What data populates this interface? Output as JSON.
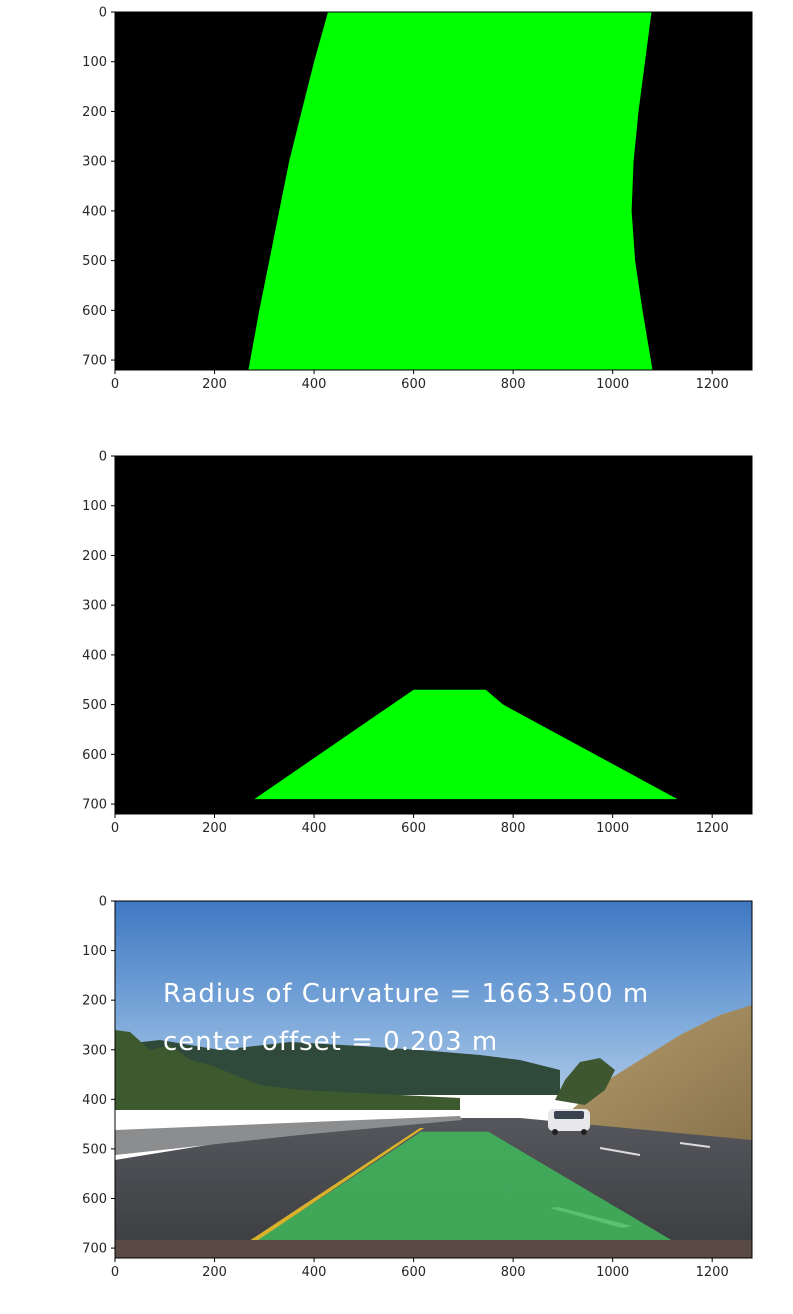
{
  "chart_data": [
    {
      "type": "image",
      "xlim": [
        0,
        1280
      ],
      "ylim": [
        720,
        0
      ],
      "xticks": [
        0,
        200,
        400,
        600,
        800,
        1000,
        1200
      ],
      "yticks": [
        0,
        100,
        200,
        300,
        400,
        500,
        600,
        700
      ],
      "background": "#000000",
      "fill_color": "#00ff00",
      "lane_polygon": {
        "left_edge": [
          [
            428,
            0
          ],
          [
            400,
            100
          ],
          [
            375,
            200
          ],
          [
            350,
            300
          ],
          [
            330,
            400
          ],
          [
            310,
            500
          ],
          [
            290,
            600
          ],
          [
            268,
            720
          ]
        ],
        "right_edge": [
          [
            1080,
            720
          ],
          [
            1060,
            600
          ],
          [
            1045,
            500
          ],
          [
            1038,
            400
          ],
          [
            1042,
            300
          ],
          [
            1052,
            200
          ],
          [
            1065,
            100
          ],
          [
            1078,
            0
          ]
        ]
      }
    },
    {
      "type": "image",
      "xlim": [
        0,
        1280
      ],
      "ylim": [
        720,
        0
      ],
      "xticks": [
        0,
        200,
        400,
        600,
        800,
        1000,
        1200
      ],
      "yticks": [
        0,
        100,
        200,
        300,
        400,
        500,
        600,
        700
      ],
      "background": "#000000",
      "fill_color": "#00ff00",
      "lane_polygon": {
        "points": [
          [
            280,
            690
          ],
          [
            600,
            470
          ],
          [
            745,
            470
          ],
          [
            780,
            500
          ],
          [
            1130,
            690
          ]
        ]
      }
    },
    {
      "type": "image",
      "xlim": [
        0,
        1280
      ],
      "ylim": [
        720,
        0
      ],
      "xticks": [
        0,
        200,
        400,
        600,
        800,
        1000,
        1200
      ],
      "yticks": [
        0,
        100,
        200,
        300,
        400,
        500,
        600,
        700
      ],
      "overlay_text": [
        "Radius of Curvature = 1663.500 m",
        "center offset = 0.203 m"
      ],
      "overlay_color": "#ffffff",
      "lane_fill": "#3fb85c",
      "lane_polygon": {
        "points": [
          [
            285,
            685
          ],
          [
            615,
            465
          ],
          [
            750,
            465
          ],
          [
            1120,
            685
          ]
        ]
      }
    }
  ]
}
